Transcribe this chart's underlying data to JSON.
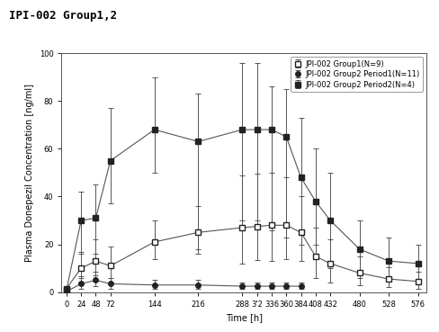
{
  "title": "IPI-002 Group1,2",
  "xlabel": "Time [h]",
  "ylabel": "Plasma Donepezil Concentration [ng/ml]",
  "ylim": [
    0,
    100
  ],
  "xlim": [
    -8,
    590
  ],
  "xticks": [
    0,
    24,
    48,
    72,
    144,
    216,
    288,
    312,
    336,
    360,
    384,
    408,
    432,
    480,
    528,
    576
  ],
  "xticklabels": [
    "0",
    "24",
    "48",
    "72",
    "144",
    "216",
    "288",
    "3'2",
    "336",
    "360",
    "384",
    "408",
    "432",
    "480",
    "528",
    "576"
  ],
  "yticks": [
    0,
    20,
    40,
    60,
    80,
    100
  ],
  "legend_labels": [
    "JPI-002 Group1(N=9)",
    "JPI-002 Group2 Period1(N=11)",
    "JPI-002 Group2 Period2(N=4)"
  ],
  "group1_x": [
    0,
    24,
    48,
    72,
    144,
    216,
    288,
    312,
    336,
    360,
    384,
    408,
    432,
    480,
    528,
    576
  ],
  "group1_y": [
    1.5,
    10.0,
    13.0,
    11.0,
    21.0,
    25.0,
    27.0,
    27.5,
    28.0,
    28.0,
    25.0,
    15.0,
    12.0,
    8.0,
    5.5,
    4.5
  ],
  "group1_yerr_lo": [
    1.0,
    4.0,
    6.0,
    5.0,
    7.0,
    9.0,
    15.0,
    14.0,
    15.0,
    14.0,
    12.0,
    9.0,
    8.0,
    5.0,
    3.5,
    3.0
  ],
  "group1_yerr_hi": [
    1.0,
    7.0,
    9.0,
    8.0,
    9.0,
    11.0,
    22.0,
    22.0,
    22.0,
    20.0,
    15.0,
    12.0,
    10.0,
    7.0,
    5.0,
    4.0
  ],
  "group2p1_x": [
    0,
    24,
    48,
    72,
    144,
    216,
    288,
    312,
    336,
    360,
    384
  ],
  "group2p1_y": [
    0.3,
    3.5,
    5.0,
    3.5,
    3.0,
    3.0,
    2.5,
    2.5,
    2.5,
    2.5,
    2.5
  ],
  "group2p1_yerr_lo": [
    0.2,
    2.0,
    2.5,
    2.0,
    1.5,
    1.5,
    1.0,
    1.0,
    1.0,
    1.0,
    1.0
  ],
  "group2p1_yerr_hi": [
    0.2,
    3.0,
    3.5,
    2.5,
    2.0,
    2.0,
    1.5,
    1.5,
    1.5,
    1.5,
    1.5
  ],
  "group2p2_x": [
    0,
    24,
    48,
    72,
    144,
    216,
    288,
    312,
    336,
    360,
    384,
    408,
    432,
    480,
    528,
    576
  ],
  "group2p2_y": [
    1.0,
    30.0,
    31.0,
    55.0,
    68.0,
    63.0,
    68.0,
    68.0,
    68.0,
    65.0,
    48.0,
    38.0,
    30.0,
    18.0,
    13.0,
    12.0
  ],
  "group2p2_yerr_lo": [
    0.5,
    14.0,
    15.0,
    18.0,
    18.0,
    45.0,
    38.0,
    38.0,
    42.0,
    42.0,
    28.0,
    18.0,
    20.0,
    12.0,
    8.0,
    7.0
  ],
  "group2p2_yerr_hi": [
    0.5,
    12.0,
    14.0,
    22.0,
    22.0,
    20.0,
    28.0,
    28.0,
    18.0,
    20.0,
    25.0,
    22.0,
    20.0,
    12.0,
    10.0,
    8.0
  ],
  "bg_color": "#ffffff",
  "title_fontsize": 9,
  "axis_label_fontsize": 7,
  "tick_fontsize": 6,
  "legend_fontsize": 6
}
